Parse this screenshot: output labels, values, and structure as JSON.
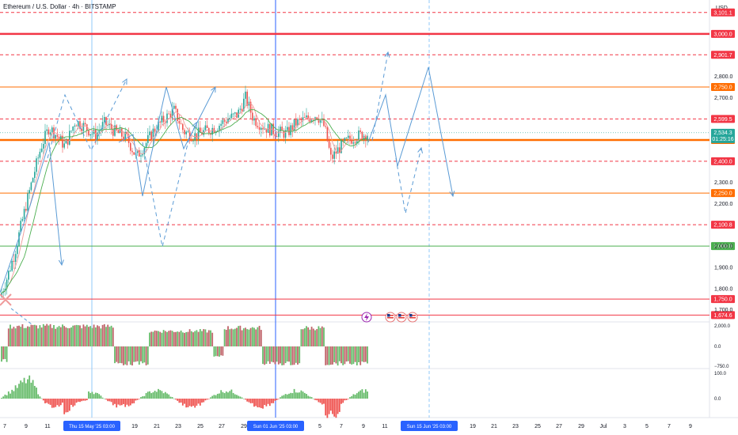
{
  "header": {
    "symbol_title": "Ethereum / U.S. Dollar · 4h · BITSTAMP",
    "currency": "USD"
  },
  "chart_data": {
    "type": "candlestick",
    "symbol": "Ethereum / U.S. Dollar",
    "timeframe": "4h",
    "exchange": "BITSTAMP",
    "price_axis_ticks": [
      1700,
      1800,
      1900,
      2000,
      2200,
      2300,
      2700,
      2800
    ],
    "ylim": [
      1650,
      3160
    ],
    "time_axis_labels": [
      "7",
      "9",
      "11",
      "Thu 15 May '25   03:00",
      "19",
      "21",
      "23",
      "25",
      "27",
      "29",
      "Sun 01 Jun '25   03:00",
      "5",
      "7",
      "9",
      "11",
      "Sun 15 Jun '25   03:00",
      "19",
      "21",
      "23",
      "25",
      "27",
      "29",
      "Jul",
      "3",
      "5",
      "7",
      "9"
    ],
    "current_price": {
      "value": "2,534.3",
      "countdown": "01:25:16"
    },
    "horizontal_levels": [
      {
        "value": "3,101.1",
        "color": "#f23645",
        "style": "dashed"
      },
      {
        "value": "3,000.0",
        "color": "#f23645",
        "style": "solid-thick"
      },
      {
        "value": "2,901.7",
        "color": "#f23645",
        "style": "dashed"
      },
      {
        "value": "2,750.0",
        "color": "#ff6d00",
        "style": "solid"
      },
      {
        "value": "2,599.5",
        "color": "#f23645",
        "style": "dashed"
      },
      {
        "value": "2,500.0",
        "color": "#ff6d00",
        "style": "solid-thick"
      },
      {
        "value": "2,400.0",
        "color": "#f23645",
        "style": "dashed"
      },
      {
        "value": "2,250.0",
        "color": "#ff6d00",
        "style": "solid"
      },
      {
        "value": "2,100.8",
        "color": "#f23645",
        "style": "dashed"
      },
      {
        "value": "2,000.0",
        "color": "#4caf50",
        "style": "solid"
      },
      {
        "value": "1,750.0",
        "color": "#f23645",
        "style": "solid"
      },
      {
        "value": "1,674.6",
        "color": "#f23645",
        "style": "solid"
      }
    ],
    "oscillator_1": {
      "ticks": [
        "2,000.0",
        "0.0",
        "−750.0"
      ]
    },
    "oscillator_2": {
      "ticks": [
        "100.0",
        "0.0"
      ]
    },
    "colors": {
      "up": "#26a69a",
      "down": "#ef5350",
      "projection": "#5b9bd5",
      "marker": "#2962ff"
    }
  }
}
